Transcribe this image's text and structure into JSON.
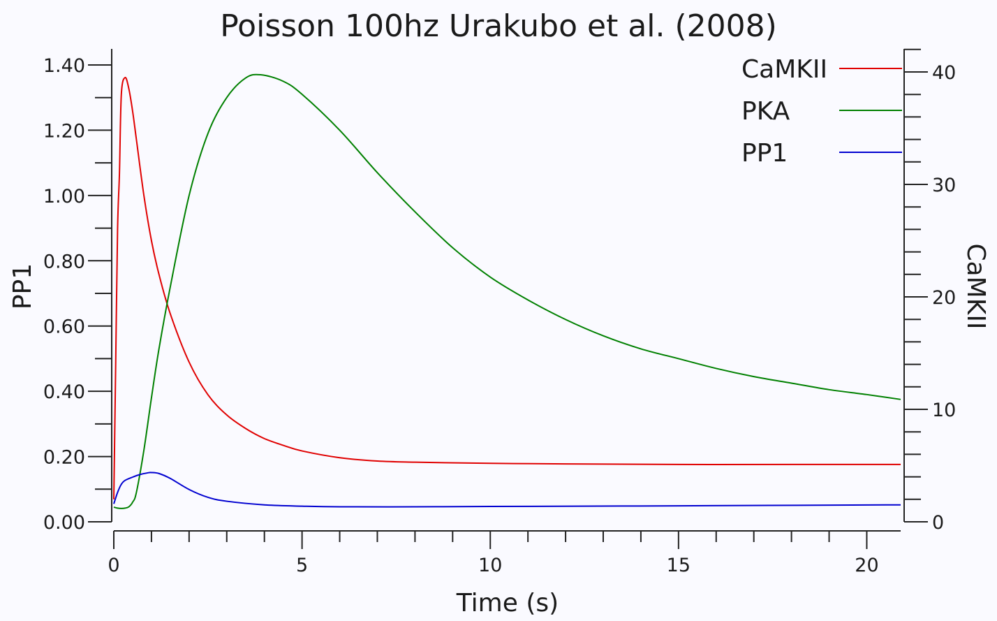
{
  "chart_data": {
    "type": "line",
    "title": "Poisson 100hz Urakubo et al. (2008)",
    "xlabel": "Time (s)",
    "ylabel_left": "PP1",
    "ylabel_right": "CaMKII",
    "xlim": [
      0,
      20.9
    ],
    "ylim_left": [
      0,
      1.4
    ],
    "ylim_right": [
      0,
      40
    ],
    "x_ticks": [
      0,
      5,
      10,
      15,
      20
    ],
    "x_tick_labels": [
      "0",
      "5",
      "10",
      "15",
      "20"
    ],
    "y_left_ticks": [
      0,
      0.2,
      0.4,
      0.6,
      0.8,
      1.0,
      1.2,
      1.4
    ],
    "y_left_tick_labels": [
      "0.00",
      "0.20",
      "0.40",
      "0.60",
      "0.80",
      "1.00",
      "1.20",
      "1.40"
    ],
    "y_right_ticks": [
      0,
      10,
      20,
      30,
      40
    ],
    "y_right_tick_labels": [
      "0",
      "10",
      "20",
      "30",
      "40"
    ],
    "grid": false,
    "legend_position": "top-right",
    "series": [
      {
        "name": "CaMKII",
        "color": "#e00000",
        "axis": "right",
        "x": [
          0,
          0.05,
          0.1,
          0.15,
          0.2,
          0.3,
          0.4,
          0.5,
          0.6,
          0.8,
          1.0,
          1.2,
          1.5,
          2.0,
          2.5,
          3.0,
          3.5,
          4.0,
          4.5,
          5.0,
          6.0,
          7.0,
          8.0,
          10.0,
          12.0,
          15.0,
          18.0,
          20.9
        ],
        "values": [
          2.0,
          14.0,
          26.0,
          31.0,
          38.0,
          39.5,
          38.5,
          36.5,
          34.0,
          29.0,
          25.0,
          22.0,
          18.5,
          14.2,
          11.3,
          9.5,
          8.3,
          7.4,
          6.8,
          6.3,
          5.7,
          5.4,
          5.3,
          5.2,
          5.15,
          5.1,
          5.1,
          5.1
        ]
      },
      {
        "name": "PKA",
        "color": "#008000",
        "axis": "left",
        "x": [
          0,
          0.1,
          0.2,
          0.3,
          0.4,
          0.5,
          0.6,
          0.8,
          1.0,
          1.2,
          1.5,
          2.0,
          2.5,
          3.0,
          3.5,
          3.9,
          4.5,
          5.0,
          6.0,
          7.0,
          8.0,
          9.0,
          10.0,
          11.0,
          12.0,
          13.0,
          14.0,
          15.0,
          16.0,
          17.0,
          18.0,
          19.0,
          20.0,
          20.9
        ],
        "values": [
          0.045,
          0.042,
          0.041,
          0.042,
          0.046,
          0.06,
          0.09,
          0.22,
          0.38,
          0.53,
          0.72,
          1.0,
          1.19,
          1.3,
          1.36,
          1.37,
          1.35,
          1.31,
          1.2,
          1.07,
          0.95,
          0.84,
          0.75,
          0.68,
          0.62,
          0.57,
          0.53,
          0.5,
          0.47,
          0.445,
          0.425,
          0.405,
          0.39,
          0.375
        ]
      },
      {
        "name": "PP1",
        "color": "#0000d0",
        "axis": "left",
        "x": [
          0,
          0.1,
          0.2,
          0.3,
          0.5,
          0.7,
          0.9,
          1.0,
          1.2,
          1.5,
          2.0,
          2.5,
          3.0,
          4.0,
          5.0,
          6.0,
          8.0,
          10.0,
          15.0,
          20.9
        ],
        "values": [
          0.055,
          0.09,
          0.115,
          0.127,
          0.137,
          0.145,
          0.15,
          0.151,
          0.148,
          0.133,
          0.099,
          0.075,
          0.063,
          0.052,
          0.048,
          0.046,
          0.046,
          0.047,
          0.049,
          0.052
        ]
      }
    ]
  }
}
